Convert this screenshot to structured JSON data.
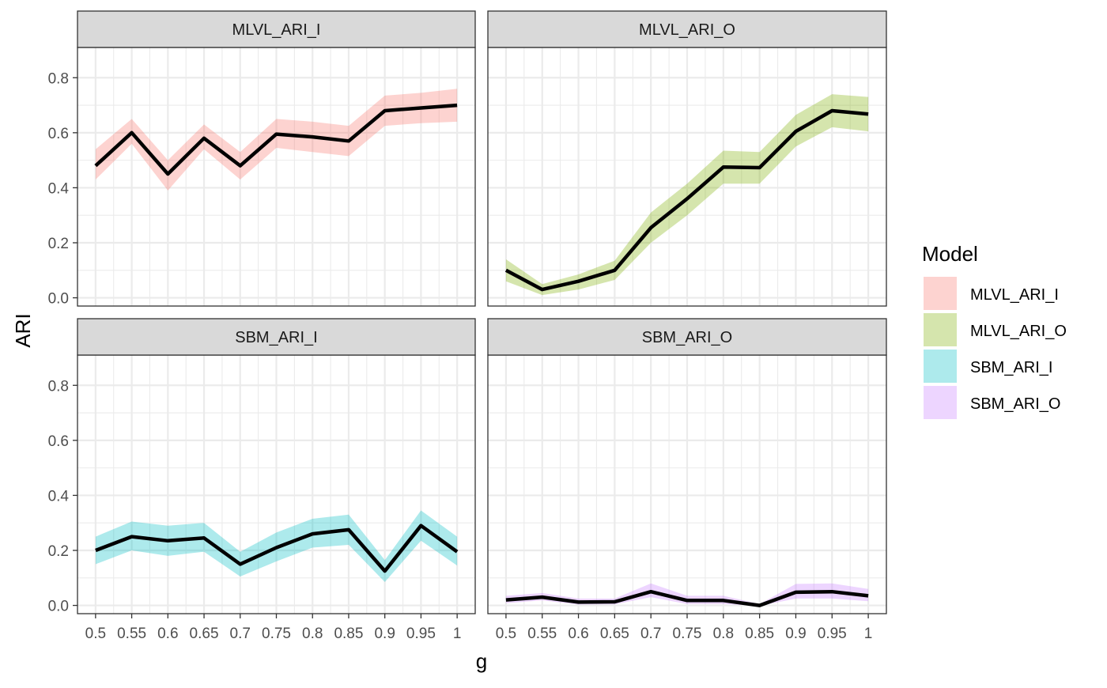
{
  "chart_data": {
    "type": "area",
    "facets": [
      "MLVL_ARI_I",
      "MLVL_ARI_O",
      "SBM_ARI_I",
      "SBM_ARI_O"
    ],
    "x": [
      0.5,
      0.55,
      0.6,
      0.65,
      0.7,
      0.75,
      0.8,
      0.85,
      0.9,
      0.95,
      1
    ],
    "x_tick_labels": [
      "0.5",
      "0.55",
      "0.6",
      "0.65",
      "0.7",
      "0.75",
      "0.8",
      "0.85",
      "0.9",
      "0.95",
      "1"
    ],
    "y_ticks": [
      0.0,
      0.2,
      0.4,
      0.6,
      0.8
    ],
    "y_tick_labels": [
      "0.0",
      "0.2",
      "0.4",
      "0.6",
      "0.8"
    ],
    "xlabel": "g",
    "ylabel": "ARI",
    "ylim": [
      -0.03,
      0.91
    ],
    "grid": true,
    "legend": {
      "title": "Model",
      "position": "right",
      "entries": [
        "MLVL_ARI_I",
        "MLVL_ARI_O",
        "SBM_ARI_I",
        "SBM_ARI_O"
      ]
    },
    "colors": {
      "MLVL_ARI_I": "#F8766D",
      "MLVL_ARI_O": "#7CAE00",
      "SBM_ARI_I": "#00BFC4",
      "SBM_ARI_O": "#C77CFF",
      "line": "#000000",
      "strip": "#D9D9D9",
      "grid": "#EBEBEB"
    },
    "series": [
      {
        "name": "MLVL_ARI_I",
        "values": [
          0.48,
          0.6,
          0.45,
          0.58,
          0.48,
          0.595,
          0.585,
          0.57,
          0.68,
          0.69,
          0.7
        ],
        "lower": [
          0.43,
          0.56,
          0.39,
          0.54,
          0.43,
          0.545,
          0.53,
          0.515,
          0.625,
          0.635,
          0.64
        ],
        "upper": [
          0.54,
          0.65,
          0.5,
          0.63,
          0.53,
          0.65,
          0.64,
          0.625,
          0.735,
          0.745,
          0.76
        ]
      },
      {
        "name": "MLVL_ARI_O",
        "values": [
          0.1,
          0.03,
          0.06,
          0.1,
          0.255,
          0.36,
          0.475,
          0.473,
          0.605,
          0.68,
          0.668
        ],
        "lower": [
          0.06,
          0.01,
          0.03,
          0.065,
          0.2,
          0.3,
          0.415,
          0.415,
          0.55,
          0.62,
          0.605
        ],
        "upper": [
          0.14,
          0.05,
          0.085,
          0.135,
          0.31,
          0.415,
          0.535,
          0.53,
          0.665,
          0.74,
          0.73
        ]
      },
      {
        "name": "SBM_ARI_I",
        "values": [
          0.2,
          0.25,
          0.235,
          0.245,
          0.15,
          0.21,
          0.26,
          0.275,
          0.125,
          0.29,
          0.195
        ],
        "lower": [
          0.15,
          0.2,
          0.18,
          0.195,
          0.105,
          0.16,
          0.21,
          0.22,
          0.085,
          0.235,
          0.145
        ],
        "upper": [
          0.25,
          0.305,
          0.29,
          0.3,
          0.195,
          0.265,
          0.315,
          0.33,
          0.165,
          0.345,
          0.25
        ]
      },
      {
        "name": "SBM_ARI_O",
        "values": [
          0.02,
          0.03,
          0.012,
          0.013,
          0.05,
          0.018,
          0.018,
          0.0,
          0.048,
          0.05,
          0.035
        ],
        "lower": [
          0.008,
          0.018,
          0.003,
          0.004,
          0.03,
          0.005,
          0.005,
          -0.002,
          0.025,
          0.025,
          0.015
        ],
        "upper": [
          0.035,
          0.045,
          0.025,
          0.025,
          0.08,
          0.035,
          0.035,
          0.005,
          0.078,
          0.08,
          0.06
        ]
      }
    ]
  }
}
